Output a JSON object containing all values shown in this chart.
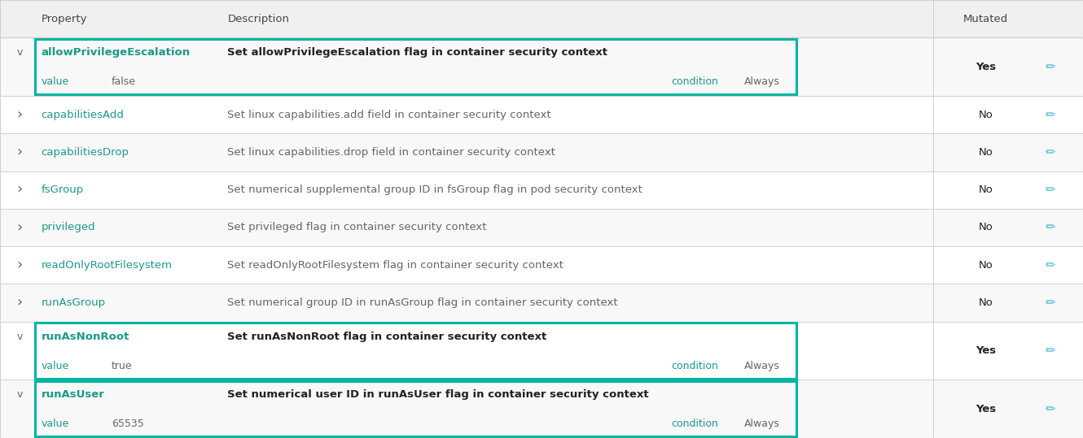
{
  "bg_color": "#ffffff",
  "header_bg": "#f0f0f0",
  "header_text_color": "#444444",
  "border_color": "#d0d0d0",
  "teal_border": "#00b5a3",
  "teal_text": "#1a9a8a",
  "dark_text": "#222222",
  "gray_text": "#666666",
  "bold_desc_color": "#111111",
  "header": {
    "property": "Property",
    "description": "Description",
    "mutated": "Mutated"
  },
  "rows": [
    {
      "type": "expanded",
      "chevron": "v",
      "property": "allowPrivilegeEscalation",
      "description": "Set allowPrivilegeEscalation flag in container security context",
      "mutated": "Yes",
      "value_label": "value",
      "value": "false",
      "condition_label": "condition",
      "condition": "Always",
      "teal_box": true
    },
    {
      "type": "collapsed",
      "chevron": "›",
      "property": "capabilitiesAdd",
      "description": "Set linux capabilities.add field in container security context",
      "mutated": "No",
      "teal_box": false
    },
    {
      "type": "collapsed",
      "chevron": "›",
      "property": "capabilitiesDrop",
      "description": "Set linux capabilities.drop field in container security context",
      "mutated": "No",
      "teal_box": false
    },
    {
      "type": "collapsed",
      "chevron": "›",
      "property": "fsGroup",
      "description": "Set numerical supplemental group ID in fsGroup flag in pod security context",
      "mutated": "No",
      "teal_box": false
    },
    {
      "type": "collapsed",
      "chevron": "›",
      "property": "privileged",
      "description": "Set privileged flag in container security context",
      "mutated": "No",
      "teal_box": false
    },
    {
      "type": "collapsed",
      "chevron": "›",
      "property": "readOnlyRootFilesystem",
      "description": "Set readOnlyRootFilesystem flag in container security context",
      "mutated": "No",
      "teal_box": false
    },
    {
      "type": "collapsed",
      "chevron": "›",
      "property": "runAsGroup",
      "description": "Set numerical group ID in runAsGroup flag in container security context",
      "mutated": "No",
      "teal_box": false
    },
    {
      "type": "expanded",
      "chevron": "v",
      "property": "runAsNonRoot",
      "description": "Set runAsNonRoot flag in container security context",
      "mutated": "Yes",
      "value_label": "value",
      "value": "true",
      "condition_label": "condition",
      "condition": "Always",
      "teal_box": true
    },
    {
      "type": "expanded",
      "chevron": "v",
      "property": "runAsUser",
      "description": "Set numerical user ID in runAsUser flag in container security context",
      "mutated": "Yes",
      "value_label": "value",
      "value": "65535",
      "condition_label": "condition",
      "condition": "Always",
      "teal_box": true
    }
  ]
}
